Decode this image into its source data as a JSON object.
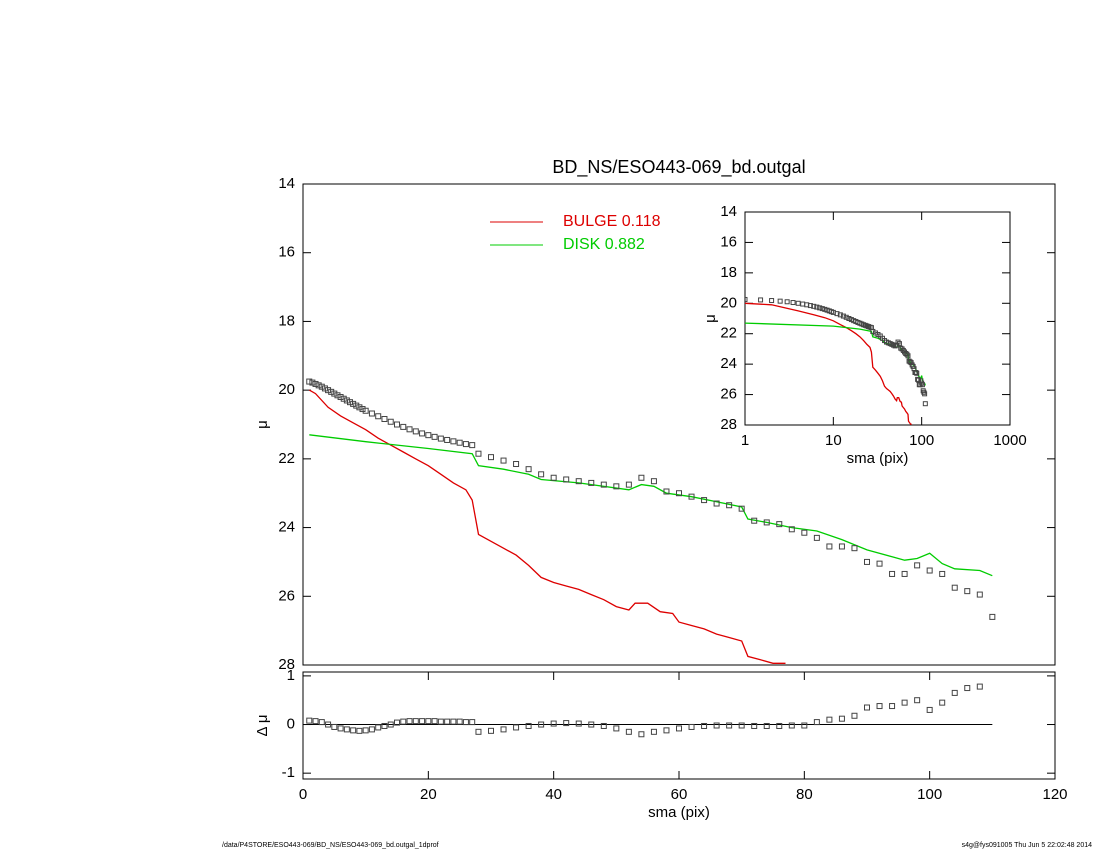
{
  "chart_data": [
    {
      "type": "line",
      "title": "BD_NS/ESO443-069_bd.outgal",
      "ylabel": "μ",
      "xlim": [
        0,
        120
      ],
      "xticks": [
        0,
        20,
        40,
        60,
        80,
        100,
        120
      ],
      "ylim": [
        28,
        14
      ],
      "yticks": [
        14,
        16,
        18,
        20,
        22,
        24,
        26,
        28
      ],
      "series": [
        {
          "name": "BULGE  0.118",
          "color": "#dd0000",
          "style": "line",
          "x": [
            1,
            2,
            4,
            6,
            8,
            10,
            12,
            14,
            16,
            18,
            20,
            22,
            24,
            26,
            27,
            28,
            30,
            32,
            34,
            36,
            38,
            40,
            42,
            44,
            46,
            48,
            50,
            52,
            53,
            55,
            57,
            59,
            60,
            62,
            64,
            66,
            68,
            70,
            71,
            73,
            75,
            77
          ],
          "values": [
            20.0,
            20.1,
            20.5,
            20.75,
            20.95,
            21.15,
            21.4,
            21.6,
            21.8,
            22.0,
            22.2,
            22.45,
            22.7,
            22.9,
            23.2,
            24.2,
            24.4,
            24.6,
            24.8,
            25.1,
            25.45,
            25.6,
            25.7,
            25.8,
            25.95,
            26.1,
            26.3,
            26.4,
            26.2,
            26.2,
            26.45,
            26.5,
            26.75,
            26.85,
            26.95,
            27.1,
            27.2,
            27.3,
            27.75,
            27.85,
            27.95,
            27.95
          ]
        },
        {
          "name": "DISK  0.882",
          "color": "#00cc00",
          "style": "line",
          "x": [
            1,
            10,
            20,
            27,
            28,
            32,
            36,
            38,
            44,
            52,
            54,
            56,
            58,
            62,
            66,
            70,
            71,
            74,
            78,
            82,
            86,
            90,
            94,
            96,
            98,
            100,
            102,
            104,
            108,
            110
          ],
          "values": [
            21.3,
            21.5,
            21.7,
            21.85,
            22.2,
            22.3,
            22.45,
            22.6,
            22.7,
            22.9,
            22.75,
            22.8,
            23.0,
            23.1,
            23.25,
            23.4,
            23.75,
            23.85,
            24.0,
            24.1,
            24.35,
            24.65,
            24.85,
            24.95,
            24.9,
            24.75,
            25.05,
            25.2,
            25.25,
            25.4
          ]
        },
        {
          "color": "#444444",
          "style": "points",
          "x": [
            1,
            1.5,
            2,
            2.5,
            3,
            3.5,
            4,
            4.5,
            5,
            5.5,
            6,
            6.5,
            7,
            7.5,
            8,
            8.5,
            9,
            9.5,
            10,
            11,
            12,
            13,
            14,
            15,
            16,
            17,
            18,
            19,
            20,
            21,
            22,
            23,
            24,
            25,
            26,
            27,
            28,
            30,
            32,
            34,
            36,
            38,
            40,
            42,
            44,
            46,
            48,
            50,
            52,
            54,
            56,
            58,
            60,
            62,
            64,
            66,
            68,
            70,
            72,
            74,
            76,
            78,
            80,
            82,
            84,
            86,
            88,
            90,
            92,
            94,
            96,
            98,
            100,
            102,
            104,
            106,
            108,
            110
          ],
          "values": [
            19.75,
            19.78,
            19.82,
            19.86,
            19.9,
            19.95,
            20.0,
            20.05,
            20.1,
            20.15,
            20.2,
            20.25,
            20.3,
            20.35,
            20.4,
            20.45,
            20.5,
            20.55,
            20.6,
            20.68,
            20.76,
            20.84,
            20.92,
            21.0,
            21.07,
            21.14,
            21.2,
            21.26,
            21.31,
            21.36,
            21.41,
            21.45,
            21.49,
            21.53,
            21.57,
            21.6,
            21.85,
            21.95,
            22.05,
            22.15,
            22.3,
            22.45,
            22.55,
            22.6,
            22.65,
            22.7,
            22.75,
            22.8,
            22.75,
            22.55,
            22.65,
            22.95,
            23.0,
            23.1,
            23.2,
            23.3,
            23.35,
            23.45,
            23.8,
            23.85,
            23.9,
            24.05,
            24.15,
            24.3,
            24.55,
            24.55,
            24.6,
            25.0,
            25.05,
            25.35,
            25.35,
            25.1,
            25.25,
            25.35,
            25.75,
            25.85,
            25.95,
            26.6
          ]
        }
      ]
    },
    {
      "type": "scatter",
      "xlabel": "sma (pix)",
      "ylabel": "Δ μ",
      "xlim": [
        0,
        120
      ],
      "xticks": [
        0,
        20,
        40,
        60,
        80,
        100,
        120
      ],
      "ylim": [
        -1.12,
        1.08
      ],
      "yticks": [
        -1,
        0,
        1
      ],
      "reference": 0,
      "color": "#444444",
      "x": [
        1,
        2,
        3,
        4,
        5,
        6,
        7,
        8,
        9,
        10,
        11,
        12,
        13,
        14,
        15,
        16,
        17,
        18,
        19,
        20,
        21,
        22,
        23,
        24,
        25,
        26,
        27,
        28,
        30,
        32,
        34,
        36,
        38,
        40,
        42,
        44,
        46,
        48,
        50,
        52,
        54,
        56,
        58,
        60,
        62,
        64,
        66,
        68,
        70,
        72,
        74,
        76,
        78,
        80,
        82,
        84,
        86,
        88,
        90,
        92,
        94,
        96,
        98,
        100,
        102,
        104,
        106,
        108
      ],
      "values": [
        0.08,
        0.07,
        0.05,
        0.0,
        -0.05,
        -0.08,
        -0.1,
        -0.12,
        -0.13,
        -0.12,
        -0.1,
        -0.06,
        -0.03,
        0.0,
        0.04,
        0.06,
        0.07,
        0.07,
        0.07,
        0.07,
        0.07,
        0.06,
        0.06,
        0.06,
        0.06,
        0.05,
        0.05,
        -0.15,
        -0.13,
        -0.1,
        -0.06,
        -0.03,
        0.0,
        0.02,
        0.03,
        0.02,
        0.0,
        -0.03,
        -0.08,
        -0.15,
        -0.2,
        -0.15,
        -0.12,
        -0.08,
        -0.05,
        -0.03,
        -0.02,
        -0.02,
        -0.02,
        -0.03,
        -0.03,
        -0.03,
        -0.02,
        -0.02,
        0.05,
        0.1,
        0.12,
        0.18,
        0.35,
        0.38,
        0.38,
        0.45,
        0.5,
        0.3,
        0.45,
        0.65,
        0.75,
        0.78
      ]
    },
    {
      "type": "line",
      "log_x": true,
      "xlabel": "sma (pix)",
      "ylabel": "μ",
      "xlim": [
        1,
        1000
      ],
      "xticks": [
        1,
        10,
        100,
        1000
      ],
      "ylim": [
        28,
        14
      ],
      "yticks": [
        14,
        16,
        18,
        20,
        22,
        24,
        26,
        28
      ]
    }
  ],
  "footer": {
    "left": "/data/P4STORE/ESO443-069/BD_NS/ESO443-069_bd.outgal_1dprof",
    "right": "s4g@fys091005  Thu Jun  5 22:02:48 2014"
  }
}
